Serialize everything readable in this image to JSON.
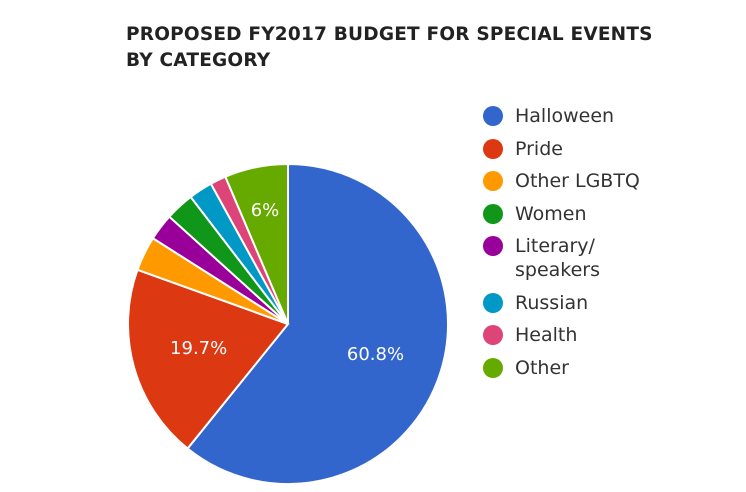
{
  "chart_data": {
    "type": "pie",
    "title": "PROPOSED FY2017 BUDGET FOR SPECIAL EVENTS BY CATEGORY",
    "title_lines": [
      "PROPOSED FY2017 BUDGET FOR SPECIAL EVENTS",
      "BY CATEGORY"
    ],
    "legend_position": "right",
    "slices": [
      {
        "name": "Halloween",
        "value": 60.8,
        "color": "#3366cc",
        "label": "60.8%"
      },
      {
        "name": "Pride",
        "value": 19.7,
        "color": "#dc3912",
        "label": "19.7%"
      },
      {
        "name": "Other LGBTQ",
        "value": 3.5,
        "color": "#ff9900",
        "label": ""
      },
      {
        "name": "Literary/\nspeakers",
        "value": 2.7,
        "color": "#990099",
        "label": ""
      },
      {
        "name": "Women",
        "value": 2.9,
        "color": "#109618",
        "label": ""
      },
      {
        "name": "Russian",
        "value": 2.4,
        "color": "#0099c6",
        "label": ""
      },
      {
        "name": "Health",
        "value": 1.6,
        "color": "#dd4477",
        "label": ""
      },
      {
        "name": "Other",
        "value": 6.4,
        "color": "#66aa00",
        "label": "6%"
      }
    ],
    "legend_order": [
      "Halloween",
      "Pride",
      "Other LGBTQ",
      "Women",
      "Literary/\nspeakers",
      "Russian",
      "Health",
      "Other"
    ]
  }
}
